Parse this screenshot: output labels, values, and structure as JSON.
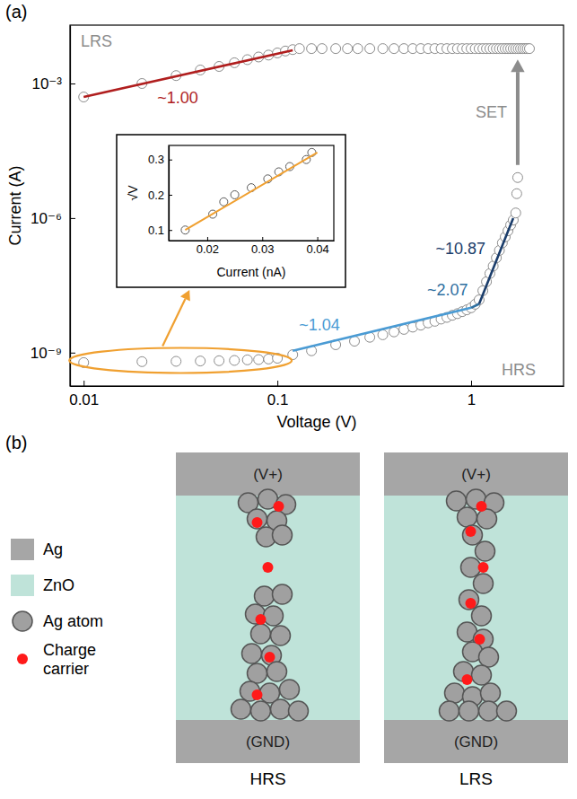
{
  "chart_data": [
    {
      "type": "scatter",
      "title": "(a)",
      "xlabel": "Voltage (V)",
      "ylabel": "Current (A)",
      "log": true,
      "grid": false,
      "xlim": [
        0.0085,
        3
      ],
      "ylim": [
        1.8e-10,
        0.02
      ],
      "xticks": [
        0.01,
        0.1,
        1
      ],
      "yticks": [
        {
          "value": 0.001,
          "label": "10⁻³"
        },
        {
          "value": 1e-06,
          "label": "10⁻⁶"
        },
        {
          "value": 1e-09,
          "label": "10⁻⁹"
        }
      ],
      "annotations": [
        "SET"
      ],
      "series": [
        {
          "name": "LRS",
          "type": "scatter",
          "marker": "circle",
          "color": "#8c8c8c",
          "x": [
            0.01,
            0.02,
            0.03,
            0.04,
            0.05,
            0.06,
            0.07,
            0.08,
            0.09,
            0.1,
            0.11,
            0.12,
            0.13,
            0.15,
            0.17,
            0.2,
            0.23,
            0.26,
            0.3,
            0.35,
            0.4,
            0.45,
            0.5,
            0.55,
            0.6,
            0.65,
            0.7,
            0.75,
            0.8,
            0.85,
            0.9,
            0.95,
            1.0,
            1.05,
            1.1,
            1.15,
            1.2,
            1.25,
            1.3,
            1.35,
            1.4,
            1.45,
            1.5,
            1.55,
            1.6,
            1.65,
            1.7,
            1.75,
            1.8,
            1.85,
            1.9,
            1.95,
            2.0
          ],
          "values": [
            0.0005,
            0.001,
            0.0015,
            0.002,
            0.0024,
            0.0029,
            0.0034,
            0.0039,
            0.0043,
            0.0048,
            0.0053,
            0.0057,
            0.006,
            0.006,
            0.006,
            0.006,
            0.006,
            0.006,
            0.006,
            0.006,
            0.006,
            0.006,
            0.006,
            0.006,
            0.006,
            0.006,
            0.006,
            0.006,
            0.006,
            0.006,
            0.006,
            0.006,
            0.006,
            0.006,
            0.006,
            0.006,
            0.006,
            0.006,
            0.006,
            0.006,
            0.006,
            0.006,
            0.006,
            0.006,
            0.006,
            0.006,
            0.006,
            0.006,
            0.006,
            0.006,
            0.006,
            0.006,
            0.006
          ]
        },
        {
          "name": "HRS",
          "type": "scatter",
          "marker": "circle",
          "color": "#8c8c8c",
          "x": [
            0.01,
            0.02,
            0.03,
            0.04,
            0.05,
            0.06,
            0.07,
            0.08,
            0.09,
            0.1,
            0.12,
            0.15,
            0.2,
            0.25,
            0.3,
            0.35,
            0.4,
            0.45,
            0.5,
            0.55,
            0.6,
            0.65,
            0.7,
            0.75,
            0.8,
            0.85,
            0.9,
            0.95,
            1.0,
            1.05,
            1.1,
            1.15,
            1.2,
            1.25,
            1.3,
            1.35,
            1.4,
            1.45,
            1.5,
            1.55,
            1.6,
            1.65,
            1.7,
            1.72,
            1.74
          ],
          "values": [
            6e-10,
            6.3e-10,
            6.4e-10,
            6.5e-10,
            6.6e-10,
            6.7e-10,
            6.9e-10,
            7e-10,
            7.2e-10,
            7.5e-10,
            9e-10,
            1.1e-09,
            1.5e-09,
            1.8e-09,
            2.2e-09,
            2.5e-09,
            2.9e-09,
            3.3e-09,
            3.7e-09,
            4.1e-09,
            4.6e-09,
            5e-09,
            5.6e-09,
            6.1e-09,
            6.8e-09,
            7.4e-09,
            8.2e-09,
            9e-09,
            1e-08,
            1.2e-08,
            1.5e-08,
            2.4e-08,
            3.8e-08,
            5.8e-08,
            8.5e-08,
            1.3e-07,
            1.9e-07,
            2.8e-07,
            3.8e-07,
            5.2e-07,
            7e-07,
            9e-07,
            1.3e-06,
            3.5e-06,
            8e-06
          ]
        },
        {
          "name": "~1.00",
          "type": "line",
          "line_style": "solid",
          "color": "#b01e1e",
          "x": [
            0.01,
            0.12
          ],
          "values": [
            0.0005,
            0.0055
          ]
        },
        {
          "name": "~1.04",
          "type": "line",
          "line_style": "solid",
          "color": "#4a9bd4",
          "x": [
            0.12,
            1.0
          ],
          "values": [
            1.1e-09,
            1e-08
          ]
        },
        {
          "name": "~2.07",
          "type": "line",
          "line_style": "solid",
          "color": "#2f6f9f",
          "x": [
            1.0,
            1.1
          ],
          "values": [
            1e-08,
            1.22e-08
          ]
        },
        {
          "name": "~10.87",
          "type": "line",
          "line_style": "solid",
          "color": "#1b3d6b",
          "x": [
            1.1,
            1.65
          ],
          "values": [
            1.22e-08,
            1e-06
          ]
        }
      ]
    },
    {
      "type": "scatter",
      "xlabel": "Current (nA)",
      "ylabel": "√V",
      "grid": false,
      "xlim": [
        0.013,
        0.043
      ],
      "ylim": [
        0.07,
        0.34
      ],
      "xticks": [
        0.02,
        0.03,
        0.04
      ],
      "yticks": [
        0.1,
        0.2,
        0.3
      ],
      "series": [
        {
          "type": "scatter",
          "marker": "circle",
          "color": "#5a5a5a",
          "x": [
            0.016,
            0.021,
            0.023,
            0.025,
            0.028,
            0.031,
            0.033,
            0.035,
            0.038,
            0.039
          ],
          "values": [
            0.1,
            0.145,
            0.18,
            0.2,
            0.22,
            0.245,
            0.265,
            0.28,
            0.3,
            0.32
          ]
        },
        {
          "type": "line",
          "line_style": "solid",
          "color": "#f0a030",
          "x": [
            0.016,
            0.04
          ],
          "values": [
            0.1,
            0.32
          ]
        }
      ]
    }
  ],
  "diagram": {
    "label": "(b)",
    "legend": [
      {
        "label": "Ag",
        "color": "#a6a6a6",
        "shape": "square"
      },
      {
        "label": "ZnO",
        "color": "#bfe3d9",
        "shape": "square"
      },
      {
        "label": "Ag atom",
        "color": "#a0a0a0",
        "shape": "circle"
      },
      {
        "label": "Charge carrier",
        "color": "#ff1a1a",
        "shape": "dot"
      }
    ],
    "panels": [
      {
        "caption": "HRS",
        "top": "(V+)",
        "bottom": "(GND)"
      },
      {
        "caption": "LRS",
        "top": "(V+)",
        "bottom": "(GND)"
      }
    ]
  }
}
